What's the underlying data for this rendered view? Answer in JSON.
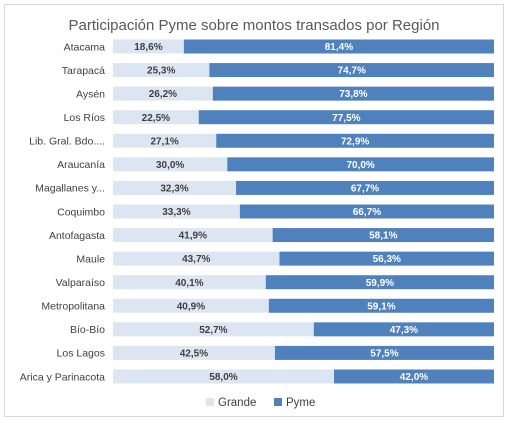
{
  "chart_data": {
    "type": "bar",
    "orientation": "horizontal",
    "stacked": "percent",
    "title": "Participación Pyme sobre montos transados por Región",
    "categories": [
      "Atacama",
      "Tarapacá",
      "Aysén",
      "Los Ríos",
      "Lib. Gral. Bdo....",
      "Araucanía",
      "Magallanes y...",
      "Coquimbo",
      "Antofagasta",
      "Maule",
      "Valparaíso",
      "Metropolitana",
      "Bío-Bío",
      "Los Lagos",
      "Arica y Parinacota"
    ],
    "series": [
      {
        "name": "Grande",
        "color": "#dce6f2",
        "text_color": "#404040",
        "values": [
          18.6,
          25.3,
          26.2,
          22.5,
          27.1,
          30.0,
          32.3,
          33.3,
          41.9,
          43.7,
          40.1,
          40.9,
          52.7,
          42.5,
          58.0
        ],
        "labels": [
          "18,6%",
          "25,3%",
          "26,2%",
          "22,5%",
          "27,1%",
          "30,0%",
          "32,3%",
          "33,3%",
          "41,9%",
          "43,7%",
          "40,1%",
          "40,9%",
          "52,7%",
          "42,5%",
          "58,0%"
        ]
      },
      {
        "name": "Pyme",
        "color": "#4f81bd",
        "text_color": "#ffffff",
        "values": [
          81.4,
          74.7,
          73.8,
          77.5,
          72.9,
          70.0,
          67.7,
          66.7,
          58.1,
          56.3,
          59.9,
          59.1,
          47.3,
          57.5,
          42.0
        ],
        "labels": [
          "81,4%",
          "74,7%",
          "73,8%",
          "77,5%",
          "72,9%",
          "70,0%",
          "67,7%",
          "66,7%",
          "58,1%",
          "56,3%",
          "59,9%",
          "59,1%",
          "47,3%",
          "57,5%",
          "42,0%"
        ]
      }
    ],
    "xlim": [
      0,
      100
    ],
    "legend_position": "bottom",
    "grid": false
  }
}
